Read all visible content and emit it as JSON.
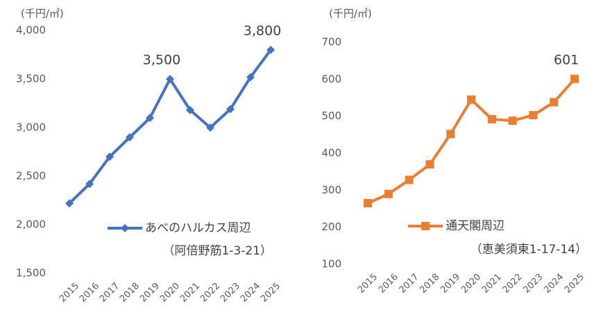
{
  "chart_data": [
    {
      "type": "line",
      "unit_label": "(千円/㎡)",
      "categories": [
        "2015",
        "2016",
        "2017",
        "2018",
        "2019",
        "2020",
        "2021",
        "2022",
        "2023",
        "2024",
        "2025"
      ],
      "series": [
        {
          "name": "あべのハルカス周辺",
          "color": "#4472c4",
          "marker": "diamond",
          "values": [
            2220,
            2420,
            2700,
            2900,
            3100,
            3500,
            3180,
            3000,
            3190,
            3520,
            3800
          ],
          "value_labels": [
            null,
            null,
            null,
            null,
            null,
            "3,500",
            null,
            null,
            null,
            null,
            "3,800"
          ]
        }
      ],
      "annotation": "（阿倍野筋1-3-21）",
      "ylim": [
        1500,
        4000
      ],
      "yticks": [
        {
          "value": 1500,
          "label": "1,500"
        },
        {
          "value": 2000,
          "label": "2,000"
        },
        {
          "value": 2500,
          "label": "2,500"
        },
        {
          "value": 3000,
          "label": "3,000"
        },
        {
          "value": 3500,
          "label": "3,500"
        },
        {
          "value": 4000,
          "label": "4,000"
        }
      ],
      "grid": false
    },
    {
      "type": "line",
      "unit_label": "(千円/㎡)",
      "categories": [
        "2015",
        "2016",
        "2017",
        "2018",
        "2019",
        "2020",
        "2021",
        "2022",
        "2023",
        "2024",
        "2025"
      ],
      "series": [
        {
          "name": "通天閣周辺",
          "color": "#ed7d31",
          "marker": "square",
          "values": [
            265,
            290,
            328,
            370,
            452,
            545,
            492,
            488,
            503,
            538,
            601
          ],
          "value_labels": [
            null,
            null,
            null,
            null,
            null,
            null,
            null,
            null,
            null,
            null,
            "601"
          ]
        }
      ],
      "annotation": "（恵美須東1-17-14）",
      "ylim": [
        100,
        700
      ],
      "yticks": [
        100,
        200,
        300,
        400,
        500,
        600,
        700
      ],
      "grid": false
    }
  ]
}
